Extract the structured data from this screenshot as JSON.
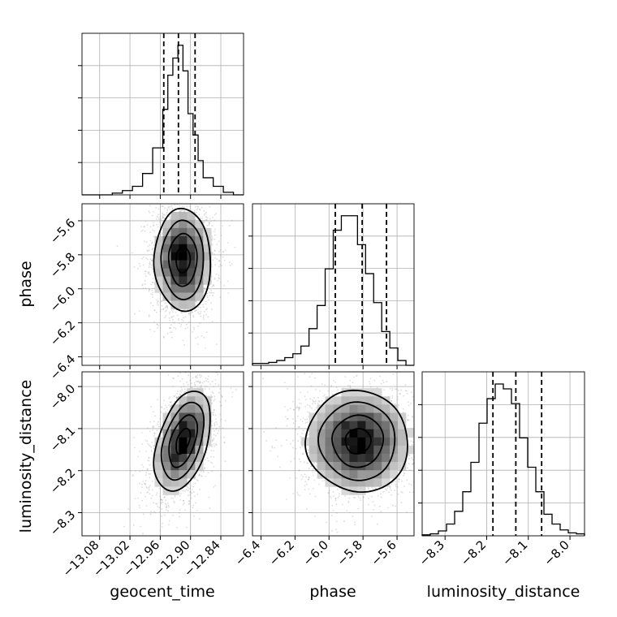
{
  "chart_data": {
    "type": "corner",
    "grid": true,
    "parameters": [
      {
        "name": "geocent_time",
        "range": [
          -13.115,
          -12.795
        ],
        "ticks": [
          -13.08,
          -13.02,
          -12.96,
          -12.9,
          -12.84
        ],
        "tick_labels": [
          "−13.08",
          "−13.02",
          "−12.96",
          "−12.90",
          "−12.84"
        ],
        "quantiles": [
          -12.953,
          -12.924,
          -12.891
        ],
        "hist_bins": [
          -13.115,
          -13.095,
          -13.075,
          -13.055,
          -13.035,
          -13.015,
          -12.995,
          -12.975,
          -12.955,
          -12.945,
          -12.935,
          -12.925,
          -12.915,
          -12.905,
          -12.895,
          -12.885,
          -12.875,
          -12.855,
          -12.835,
          -12.815,
          -12.795
        ],
        "hist_counts": [
          0,
          0,
          0,
          2,
          5,
          10,
          25,
          55,
          100,
          140,
          160,
          175,
          145,
          95,
          70,
          40,
          20,
          10,
          3,
          0
        ],
        "xlabel": "geocent_time"
      },
      {
        "name": "phase",
        "range": [
          -6.45,
          -5.5
        ],
        "ticks": [
          -6.4,
          -6.2,
          -6.0,
          -5.8,
          -5.6
        ],
        "tick_labels": [
          "−6.4",
          "−6.2",
          "−6.0",
          "−5.8",
          "−5.6"
        ],
        "quantiles": [
          -5.963,
          -5.805,
          -5.662
        ],
        "hist_counts": [
          2,
          2,
          3,
          5,
          8,
          12,
          20,
          38,
          62,
          100,
          140,
          155,
          155,
          125,
          95,
          65,
          35,
          18,
          5,
          0
        ],
        "xlabel": "phase",
        "ylabel": "phase"
      },
      {
        "name": "luminosity_distance",
        "range": [
          -8.355,
          -7.965
        ],
        "ticks": [
          -8.3,
          -8.2,
          -8.1,
          -8.0
        ],
        "tick_labels": [
          "−8.3",
          "−8.2",
          "−8.1",
          "−8.0"
        ],
        "ticks_2d": [
          -8.3,
          -8.2,
          -8.1,
          -8.0
        ],
        "tick_labels_2d": [
          "−8.3",
          "−8.2",
          "−8.1",
          "−8.0"
        ],
        "quantiles": [
          -8.185,
          -8.13,
          -8.068
        ],
        "hist_counts": [
          1,
          2,
          5,
          12,
          25,
          45,
          75,
          115,
          140,
          155,
          150,
          135,
          100,
          70,
          45,
          22,
          12,
          6,
          3,
          2
        ],
        "xlabel": "luminosity_distance",
        "ylabel": "luminosity_distance"
      }
    ],
    "pairs": [
      {
        "x": "geocent_time",
        "y": "phase",
        "center": [
          -12.915,
          -5.83
        ],
        "sigma": [
          0.028,
          0.15
        ],
        "rho": 0.0
      },
      {
        "x": "geocent_time",
        "y": "luminosity_distance",
        "center": [
          -12.915,
          -8.13
        ],
        "sigma": [
          0.028,
          0.06
        ],
        "rho": 0.45
      },
      {
        "x": "phase",
        "y": "luminosity_distance",
        "center": [
          -5.83,
          -8.13
        ],
        "sigma": [
          0.15,
          0.06
        ],
        "rho": 0.0
      }
    ],
    "colors": {
      "hist": "#000000",
      "contour": "#000000",
      "points": "#9a9a9a",
      "grid": "#b0b0b0"
    }
  }
}
